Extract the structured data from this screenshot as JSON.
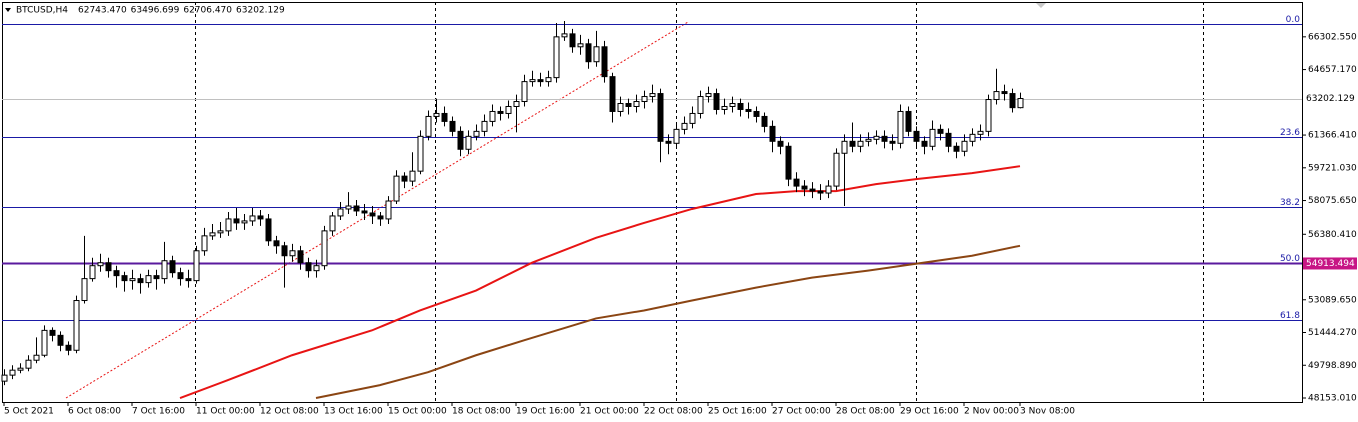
{
  "chart_data": {
    "type": "candlestick",
    "title": "BTCUSD,H4",
    "info_labels": [
      "62743.470",
      "63496.699",
      "62706.470",
      "63202.129"
    ],
    "categories": [
      "5 Oct 2021",
      null,
      null,
      null,
      null,
      null,
      null,
      null,
      "6 Oct 08:00",
      null,
      null,
      null,
      null,
      null,
      null,
      null,
      "7 Oct 16:00",
      null,
      null,
      null,
      null,
      null,
      null,
      null,
      "11 Oct 00:00",
      null,
      null,
      null,
      null,
      null,
      null,
      null,
      "12 Oct 08:00",
      null,
      null,
      null,
      null,
      null,
      null,
      null,
      "13 Oct 16:00",
      null,
      null,
      null,
      null,
      null,
      null,
      null,
      "15 Oct 00:00",
      null,
      null,
      null,
      null,
      null,
      null,
      null,
      "18 Oct 08:00",
      null,
      null,
      null,
      null,
      null,
      null,
      null,
      "19 Oct 16:00",
      null,
      null,
      null,
      null,
      null,
      null,
      null,
      "21 Oct 00:00",
      null,
      null,
      null,
      null,
      null,
      null,
      null,
      "22 Oct 08:00",
      null,
      null,
      null,
      null,
      null,
      null,
      null,
      "25 Oct 16:00",
      null,
      null,
      null,
      null,
      null,
      null,
      null,
      "27 Oct 00:00",
      null,
      null,
      null,
      null,
      null,
      null,
      null,
      "28 Oct 08:00",
      null,
      null,
      null,
      null,
      null,
      null,
      null,
      "29 Oct 16:00",
      null,
      null,
      null,
      null,
      null,
      null,
      null,
      "2 Nov 00:00",
      null,
      null,
      null,
      null,
      null,
      null,
      "3 Nov 08:00"
    ],
    "open": [
      49000,
      49302,
      49552,
      49652,
      50052,
      50302,
      51552,
      51302,
      50802,
      50552,
      53052,
      54152,
      54802,
      54952,
      54552,
      54302,
      54052,
      54152,
      53952,
      54302,
      54152,
      55052,
      54452,
      54152,
      54052,
      55552,
      56302,
      56452,
      56552,
      57152,
      56952,
      57052,
      57302,
      57152,
      56052,
      55802,
      55302,
      55552,
      54952,
      54552,
      54802,
      56552,
      57302,
      57652,
      57802,
      57552,
      57452,
      57302,
      57152,
      58052,
      59302,
      59052,
      59552,
      61302,
      62302,
      62452,
      62052,
      61552,
      60652,
      61302,
      61552,
      62052,
      62552,
      62452,
      62802,
      63052,
      64052,
      64152,
      64052,
      64252,
      66302,
      66452,
      65802,
      65952,
      65052,
      65802,
      64302,
      62552,
      62952,
      62802,
      63052,
      63302,
      63452,
      61052,
      60952,
      61652,
      61952,
      62452,
      63302,
      63452,
      62652,
      62802,
      62952,
      62652,
      62552,
      62302,
      61802,
      61052,
      60802,
      59152,
      58802,
      58652,
      58552,
      58452,
      58802,
      60452,
      61052,
      60802,
      61052,
      61152,
      61302,
      61052,
      60952,
      62552,
      61552,
      61052,
      60802,
      61652,
      61452,
      60802,
      60552,
      61052,
      61402,
      61552,
      63152,
      63552,
      63452,
      62743.47
    ],
    "high": [
      49600,
      49800,
      49900,
      50300,
      51200,
      51800,
      51700,
      51500,
      51000,
      53300,
      56300,
      55200,
      55400,
      55200,
      54800,
      54500,
      54600,
      54400,
      54600,
      54600,
      56000,
      55300,
      54700,
      54600,
      55800,
      56700,
      56900,
      57000,
      57500,
      57700,
      57400,
      57700,
      57600,
      57400,
      56300,
      56000,
      55900,
      55800,
      55200,
      55100,
      56800,
      57500,
      58000,
      58500,
      58100,
      57900,
      57800,
      57500,
      58300,
      59600,
      59500,
      60500,
      61600,
      62600,
      63200,
      62800,
      62300,
      61800,
      61600,
      61900,
      62400,
      62900,
      62800,
      63100,
      63400,
      64400,
      64600,
      64500,
      64600,
      67000,
      67100,
      66700,
      66400,
      66200,
      66600,
      66100,
      64500,
      63300,
      63200,
      63400,
      63600,
      63900,
      63700,
      61400,
      62000,
      62300,
      62800,
      63600,
      63800,
      63700,
      63200,
      63300,
      63200,
      63000,
      62800,
      62500,
      62100,
      61300,
      61000,
      59500,
      59100,
      59000,
      58900,
      59100,
      60700,
      61400,
      62000,
      61400,
      61500,
      61600,
      61600,
      61400,
      62900,
      62800,
      61800,
      61300,
      62100,
      61900,
      61700,
      61000,
      61400,
      61700,
      61900,
      63400,
      64700,
      63900,
      63700,
      63496.699
    ],
    "low": [
      48800,
      49100,
      49400,
      49500,
      49900,
      50200,
      51000,
      50500,
      50300,
      50400,
      52900,
      54000,
      54500,
      54200,
      53700,
      53500,
      53600,
      53400,
      53700,
      53600,
      53900,
      54200,
      53800,
      53700,
      53900,
      55300,
      56100,
      56200,
      56300,
      56600,
      56600,
      56800,
      56800,
      55800,
      55400,
      53700,
      55000,
      54600,
      54200,
      54200,
      54600,
      56300,
      57100,
      57400,
      57300,
      57100,
      56900,
      56800,
      56900,
      57900,
      58700,
      58800,
      59400,
      61100,
      62000,
      61800,
      61300,
      60300,
      60400,
      61100,
      61300,
      61800,
      62100,
      62200,
      61500,
      62800,
      63800,
      63800,
      63800,
      64000,
      66100,
      65500,
      65400,
      64700,
      64800,
      64000,
      62000,
      62300,
      62400,
      62500,
      62700,
      63000,
      60000,
      60400,
      60700,
      61400,
      61700,
      62200,
      63000,
      62400,
      62400,
      62500,
      62300,
      62200,
      62000,
      61500,
      60500,
      60400,
      58800,
      58500,
      58300,
      58200,
      58100,
      58200,
      58600,
      57800,
      60500,
      60500,
      60800,
      60900,
      60700,
      60600,
      60700,
      61300,
      60700,
      60400,
      60600,
      61100,
      60500,
      60200,
      60300,
      60800,
      61100,
      61300,
      62900,
      63100,
      62500,
      62706.47
    ],
    "close": [
      49302,
      49552,
      49652,
      50052,
      50302,
      51552,
      51302,
      50802,
      50552,
      53052,
      54152,
      54802,
      54952,
      54552,
      54302,
      54052,
      54152,
      53952,
      54302,
      54152,
      55052,
      54452,
      54152,
      54052,
      55552,
      56302,
      56452,
      56552,
      57152,
      56952,
      57052,
      57302,
      57152,
      56052,
      55802,
      55302,
      55552,
      54952,
      54552,
      54802,
      56552,
      57302,
      57652,
      57802,
      57552,
      57452,
      57302,
      57152,
      58052,
      59302,
      59052,
      59552,
      61302,
      62302,
      62452,
      62052,
      61552,
      60652,
      61302,
      61552,
      62052,
      62552,
      62452,
      62802,
      63052,
      64052,
      64152,
      64052,
      64252,
      66302,
      66452,
      65802,
      65952,
      65052,
      65802,
      64302,
      62552,
      62952,
      62802,
      63052,
      63302,
      63452,
      61052,
      60952,
      61652,
      61952,
      62452,
      63302,
      63452,
      62652,
      62802,
      62952,
      62652,
      62552,
      62302,
      61802,
      61052,
      60802,
      59152,
      58802,
      58652,
      58552,
      58452,
      58802,
      60452,
      61052,
      60802,
      61052,
      61152,
      61302,
      61052,
      60952,
      62552,
      61552,
      61052,
      60802,
      61652,
      61452,
      60802,
      60552,
      61052,
      61402,
      61552,
      63152,
      63552,
      63452,
      62743.47,
      63202.129
    ],
    "colors": {
      "up": "#ffffff",
      "down": "#000000"
    },
    "moving_averages": [
      {
        "color": "#e81414",
        "x": [
          22,
          28,
          36,
          46,
          52,
          59,
          66,
          74,
          80,
          86,
          94,
          99,
          104,
          109,
          114,
          121,
          127
        ],
        "values": [
          48152,
          49052,
          50302,
          51552,
          52552,
          53552,
          54952,
          56202,
          56952,
          57652,
          58402,
          58552,
          58552,
          58902,
          59152,
          59452,
          59802
        ]
      },
      {
        "color": "#8b4513",
        "x": [
          39,
          47,
          53,
          59,
          65,
          74,
          80,
          86,
          94,
          101,
          108,
          114,
          121,
          127
        ],
        "values": [
          48152,
          48802,
          49452,
          50302,
          51052,
          52152,
          52552,
          53052,
          53702,
          54202,
          54552,
          54902,
          55302,
          55802
        ]
      }
    ],
    "fib_levels": [
      {
        "label": "0.0",
        "price": 66950
      },
      {
        "label": "23.6",
        "price": 61270
      },
      {
        "label": "38.2",
        "price": 57750
      },
      {
        "label": "50.0",
        "price": 54913.494
      },
      {
        "label": "61.8",
        "price": 52070
      }
    ],
    "ylim": [
      47952.55,
      68052.55
    ],
    "yticks": [
      {
        "value": 66302.55,
        "label": "66302.550"
      },
      {
        "value": 64657.17,
        "label": "64657.170"
      },
      {
        "value": 61366.41,
        "label": "61366.410"
      },
      {
        "value": 59721.03,
        "label": "59721.030"
      },
      {
        "value": 58075.65,
        "label": "58075.650"
      },
      {
        "value": 56380.41,
        "label": "56380.410"
      },
      {
        "value": 53089.65,
        "label": "53089.650"
      },
      {
        "value": 51444.27,
        "label": "51444.270"
      },
      {
        "value": 49798.89,
        "label": "49798.890"
      },
      {
        "value": 48153.01,
        "label": "48153.010"
      }
    ]
  }
}
